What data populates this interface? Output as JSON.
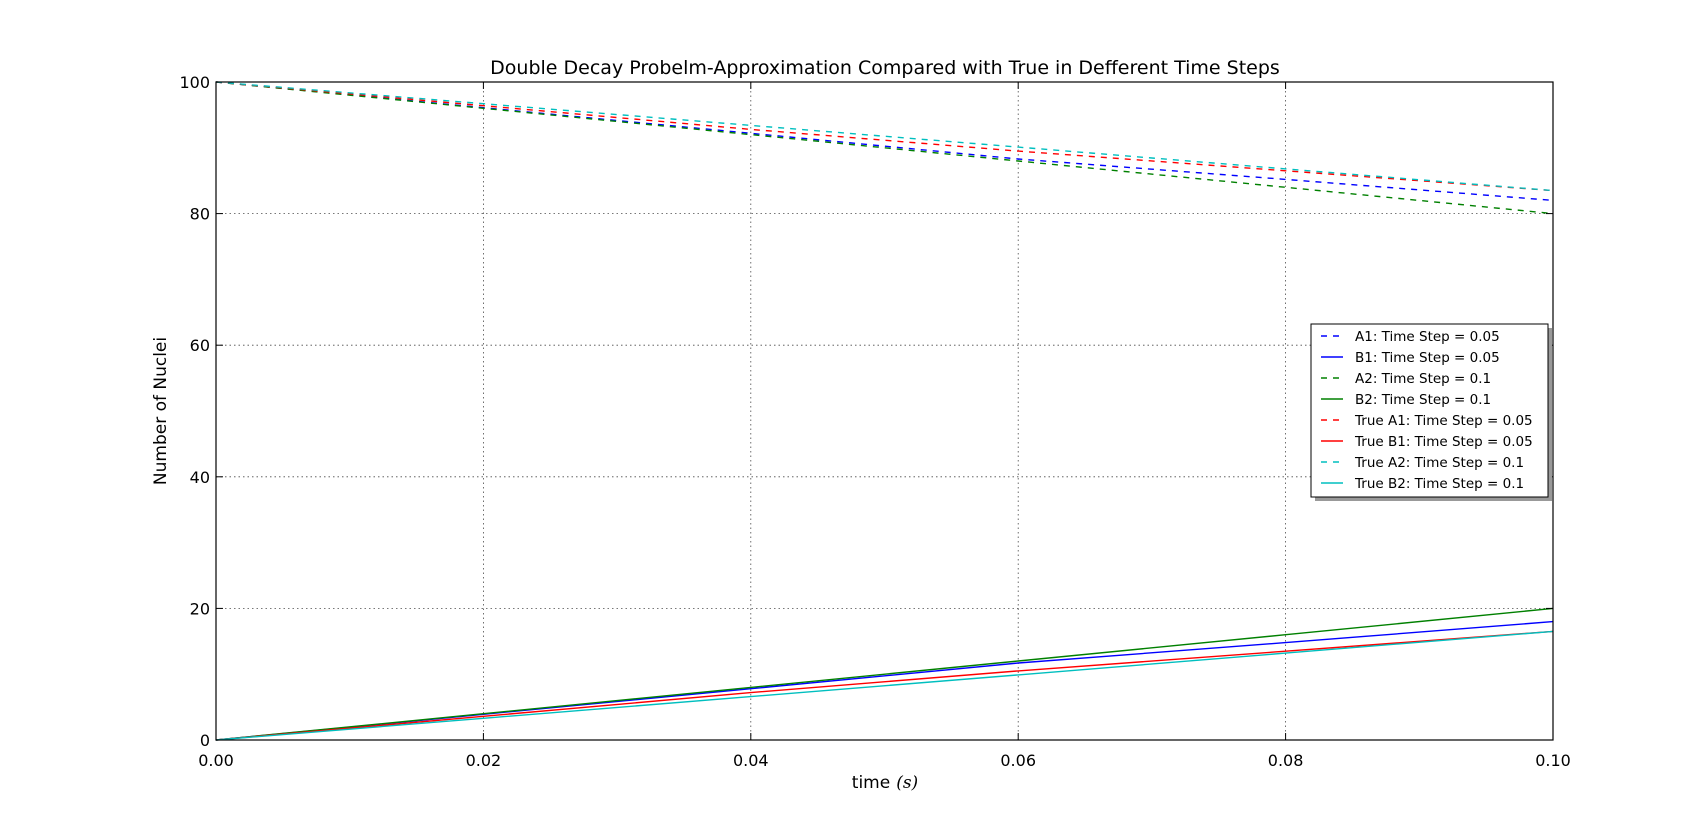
{
  "chart_data": {
    "type": "line",
    "title": "Double Decay Probelm-Approximation Compared with True in Defferent Time Steps",
    "xlabel": "time",
    "xlabel_unit": "(s)",
    "ylabel": "Number of Nuclei",
    "xlim": [
      0.0,
      0.1
    ],
    "ylim": [
      0,
      100
    ],
    "xticks": [
      "0.00",
      "0.02",
      "0.04",
      "0.06",
      "0.08",
      "0.10"
    ],
    "yticks": [
      "0",
      "20",
      "40",
      "60",
      "80",
      "100"
    ],
    "grid": true,
    "legend_position": "center-right",
    "series": [
      {
        "name": "A1: Time Step = 0.05",
        "color": "#0000ff",
        "dash": true,
        "x": [
          0.0,
          0.02,
          0.04,
          0.06,
          0.08,
          0.1
        ],
        "y": [
          100,
          96.1,
          92.2,
          88.3,
          85.2,
          82.0
        ]
      },
      {
        "name": "B1: Time Step = 0.05",
        "color": "#0000ff",
        "dash": false,
        "x": [
          0.0,
          0.02,
          0.04,
          0.06,
          0.08,
          0.1
        ],
        "y": [
          0,
          3.9,
          7.8,
          11.7,
          14.8,
          18.0
        ]
      },
      {
        "name": "A2: Time Step = 0.1",
        "color": "#008000",
        "dash": true,
        "x": [
          0.0,
          0.02,
          0.04,
          0.06,
          0.08,
          0.1
        ],
        "y": [
          100,
          96.0,
          92.0,
          88.0,
          84.0,
          80.0
        ]
      },
      {
        "name": "B2: Time Step = 0.1",
        "color": "#008000",
        "dash": false,
        "x": [
          0.0,
          0.02,
          0.04,
          0.06,
          0.08,
          0.1
        ],
        "y": [
          0,
          4.0,
          8.0,
          12.0,
          16.0,
          20.0
        ]
      },
      {
        "name": "True A1: Time Step = 0.05",
        "color": "#ff0000",
        "dash": true,
        "x": [
          0.0,
          0.02,
          0.04,
          0.06,
          0.08,
          0.1
        ],
        "y": [
          100,
          96.4,
          92.8,
          89.5,
          86.5,
          83.5
        ]
      },
      {
        "name": "True B1: Time Step = 0.05",
        "color": "#ff0000",
        "dash": false,
        "x": [
          0.0,
          0.02,
          0.04,
          0.06,
          0.08,
          0.1
        ],
        "y": [
          0,
          3.6,
          7.2,
          10.5,
          13.5,
          16.5
        ]
      },
      {
        "name": "True A2: Time Step = 0.1",
        "color": "#00bfbf",
        "dash": true,
        "x": [
          0.0,
          0.02,
          0.04,
          0.06,
          0.08,
          0.1
        ],
        "y": [
          100,
          96.7,
          93.4,
          90.1,
          86.8,
          83.5
        ]
      },
      {
        "name": "True B2: Time Step = 0.1",
        "color": "#00bfbf",
        "dash": false,
        "x": [
          0.0,
          0.02,
          0.04,
          0.06,
          0.08,
          0.1
        ],
        "y": [
          0,
          3.3,
          6.6,
          9.9,
          13.2,
          16.5
        ]
      }
    ]
  }
}
